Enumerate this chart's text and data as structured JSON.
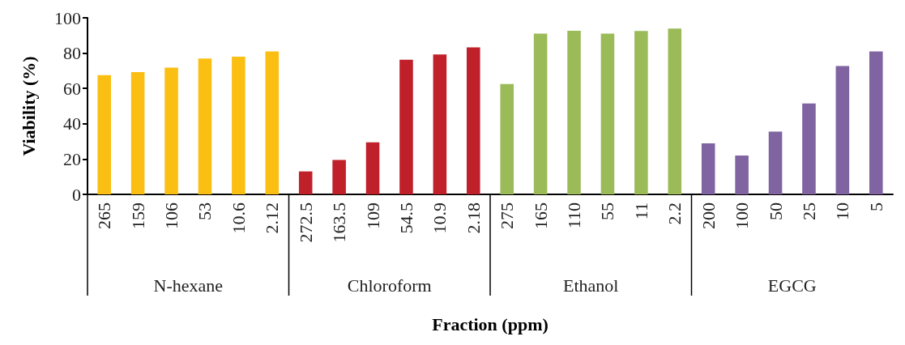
{
  "chart_data": {
    "type": "bar",
    "xlabel": "Fraction (ppm)",
    "ylabel": "Viability (%)",
    "categories": [
      "265",
      "159",
      "106",
      "53",
      "10.6",
      "2.12",
      "272.5",
      "163.5",
      "109",
      "54.5",
      "10.9",
      "2.18",
      "275",
      "165",
      "110",
      "55",
      "11",
      "2.2",
      "200",
      "100",
      "50",
      "25",
      "10",
      "5"
    ],
    "series": [
      {
        "color": "#fbbf14",
        "values": [
          67.5,
          69.3,
          71.8,
          77,
          78,
          81,
          null,
          null,
          null,
          null,
          null,
          null,
          null,
          null,
          null,
          null,
          null,
          null,
          null,
          null,
          null,
          null,
          null,
          null
        ]
      },
      {
        "color": "#c0202a",
        "values": [
          null,
          null,
          null,
          null,
          null,
          null,
          13,
          19.5,
          29.5,
          76.3,
          79.2,
          83.3,
          null,
          null,
          null,
          null,
          null,
          null,
          null,
          null,
          null,
          null,
          null,
          null
        ]
      },
      {
        "color": "#9bbb59",
        "values": [
          null,
          null,
          null,
          null,
          null,
          null,
          null,
          null,
          null,
          null,
          null,
          null,
          62.5,
          91,
          92.7,
          91,
          92.6,
          93.9,
          null,
          null,
          null,
          null,
          null,
          null
        ]
      },
      {
        "color": "#8064a2",
        "values": [
          null,
          null,
          null,
          null,
          null,
          null,
          null,
          null,
          null,
          null,
          null,
          null,
          null,
          null,
          null,
          null,
          null,
          null,
          28.9,
          22,
          35.5,
          51.5,
          72.7,
          81
        ]
      }
    ],
    "ylim": [
      0,
      100
    ],
    "yticks": [
      0,
      20,
      40,
      60,
      80,
      100
    ],
    "annotations": [
      "N-hexane",
      "Chloroform",
      "Ethanol",
      "EGCG"
    ],
    "grid": false
  }
}
